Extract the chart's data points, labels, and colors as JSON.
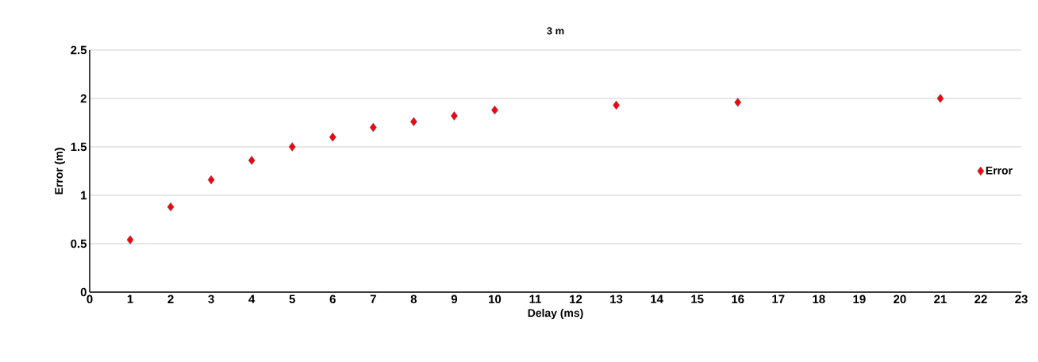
{
  "chart_data": {
    "type": "scatter",
    "title": "3 m",
    "xlabel": "Delay (ms)",
    "ylabel": "Error (m)",
    "x": [
      1,
      2,
      3,
      4,
      5,
      6,
      7,
      8,
      9,
      10,
      13,
      16,
      21
    ],
    "series": [
      {
        "name": "Error",
        "color": "#ff0000",
        "values": [
          0.54,
          0.88,
          1.16,
          1.36,
          1.5,
          1.6,
          1.7,
          1.76,
          1.82,
          1.88,
          1.93,
          1.96,
          2.0
        ]
      }
    ],
    "xlim": [
      0,
      23
    ],
    "xticks": [
      0,
      1,
      2,
      3,
      4,
      5,
      6,
      7,
      8,
      9,
      10,
      11,
      12,
      13,
      14,
      15,
      16,
      17,
      18,
      19,
      20,
      21,
      22,
      23
    ],
    "ylim": [
      0,
      2.5
    ],
    "yticks": [
      0,
      0.5,
      1,
      1.5,
      2,
      2.5
    ],
    "grid": "y",
    "legend": "right",
    "marker": "diamond"
  }
}
